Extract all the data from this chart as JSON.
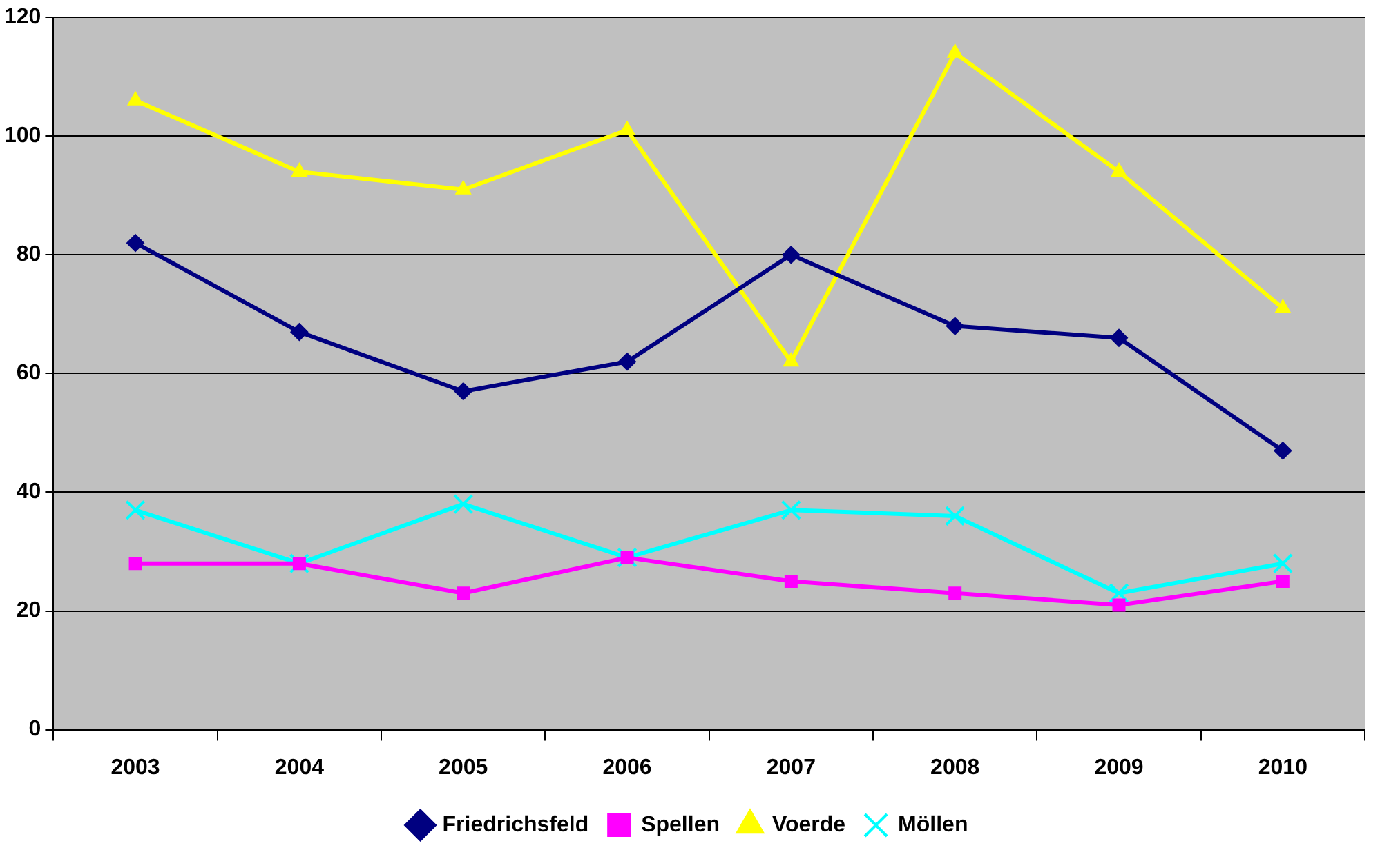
{
  "chart_data": {
    "type": "line",
    "categories": [
      "2003",
      "2004",
      "2005",
      "2006",
      "2007",
      "2008",
      "2009",
      "2010"
    ],
    "series": [
      {
        "name": "Friedrichsfeld",
        "color": "#000080",
        "marker": "diamond",
        "values": [
          82,
          67,
          57,
          62,
          80,
          68,
          66,
          47
        ]
      },
      {
        "name": "Spellen",
        "color": "#ff00ff",
        "marker": "square",
        "values": [
          28,
          28,
          23,
          29,
          25,
          23,
          21,
          25
        ]
      },
      {
        "name": "Voerde",
        "color": "#ffff00",
        "marker": "triangle",
        "values": [
          106,
          94,
          91,
          101,
          62,
          114,
          94,
          71
        ]
      },
      {
        "name": "Möllen",
        "color": "#00ffff",
        "marker": "cross",
        "values": [
          37,
          28,
          38,
          29,
          37,
          36,
          23,
          28
        ]
      }
    ],
    "ylim": [
      0,
      120
    ],
    "yticks": [
      0,
      20,
      40,
      60,
      80,
      100,
      120
    ],
    "grid": "y",
    "legend": "bottom",
    "line_style": "solid"
  }
}
